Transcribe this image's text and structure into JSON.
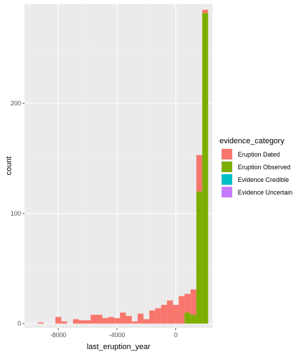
{
  "chart_data": {
    "type": "bar",
    "subtype": "stacked-histogram",
    "title": "",
    "xlabel": "last_eruption_year",
    "ylabel": "count",
    "xlim": [
      -10300,
      2500
    ],
    "ylim": [
      -4,
      290
    ],
    "x_ticks": [
      {
        "value": -8000,
        "label": "-8000"
      },
      {
        "value": -4000,
        "label": "-4000"
      },
      {
        "value": 0,
        "label": "0"
      }
    ],
    "y_ticks": [
      {
        "value": 0,
        "label": "0"
      },
      {
        "value": 100,
        "label": "100"
      },
      {
        "value": 200,
        "label": "200"
      }
    ],
    "grid": true,
    "legend_position": "right",
    "legend_title": "evidence_category",
    "bin_width": 400,
    "series": [
      {
        "name": "Eruption Dated",
        "color": "#F8766D"
      },
      {
        "name": "Eruption Observed",
        "color": "#7CAE00"
      },
      {
        "name": "Evidence Credible",
        "color": "#00BFC4"
      },
      {
        "name": "Evidence Uncertain",
        "color": "#C77CFF"
      }
    ],
    "bins": [
      {
        "x": -9600,
        "values": [
          0,
          0,
          0,
          0
        ]
      },
      {
        "x": -9200,
        "values": [
          1,
          0,
          0,
          0
        ]
      },
      {
        "x": -8800,
        "values": [
          0,
          0,
          0,
          0
        ]
      },
      {
        "x": -8400,
        "values": [
          0,
          0,
          0,
          0
        ]
      },
      {
        "x": -8000,
        "values": [
          6,
          0,
          0,
          0
        ]
      },
      {
        "x": -7600,
        "values": [
          2,
          0,
          0,
          0
        ]
      },
      {
        "x": -7200,
        "values": [
          0,
          0,
          0,
          0
        ]
      },
      {
        "x": -6800,
        "values": [
          4,
          0,
          0,
          0
        ]
      },
      {
        "x": -6400,
        "values": [
          3,
          0,
          0,
          0
        ]
      },
      {
        "x": -6000,
        "values": [
          3,
          0,
          0,
          0
        ]
      },
      {
        "x": -5600,
        "values": [
          8,
          0,
          0,
          0
        ]
      },
      {
        "x": -5200,
        "values": [
          8,
          0,
          0,
          0
        ]
      },
      {
        "x": -4800,
        "values": [
          5,
          0,
          0,
          0
        ]
      },
      {
        "x": -4400,
        "values": [
          6,
          0,
          0,
          0
        ]
      },
      {
        "x": -4000,
        "values": [
          5,
          0,
          0,
          0
        ]
      },
      {
        "x": -3600,
        "values": [
          10,
          0,
          0,
          0
        ]
      },
      {
        "x": -3200,
        "values": [
          7,
          0,
          0,
          0
        ]
      },
      {
        "x": -2800,
        "values": [
          2,
          0,
          0,
          0
        ]
      },
      {
        "x": -2400,
        "values": [
          9,
          0,
          0,
          0
        ]
      },
      {
        "x": -2000,
        "values": [
          4,
          0,
          0,
          0
        ]
      },
      {
        "x": -1600,
        "values": [
          12,
          0,
          0,
          0
        ]
      },
      {
        "x": -1200,
        "values": [
          14,
          0,
          0,
          0
        ]
      },
      {
        "x": -800,
        "values": [
          17,
          0,
          0,
          0
        ]
      },
      {
        "x": -400,
        "values": [
          21,
          0,
          0,
          0
        ]
      },
      {
        "x": 0,
        "values": [
          17,
          0,
          0,
          0
        ]
      },
      {
        "x": 400,
        "values": [
          25,
          0,
          0,
          0
        ]
      },
      {
        "x": 800,
        "values": [
          17,
          10,
          0,
          0
        ]
      },
      {
        "x": 1200,
        "values": [
          23,
          8,
          0,
          0
        ]
      },
      {
        "x": 1600,
        "values": [
          33,
          120,
          0,
          0
        ]
      },
      {
        "x": 2000,
        "values": [
          3,
          282,
          0,
          0
        ]
      }
    ]
  }
}
